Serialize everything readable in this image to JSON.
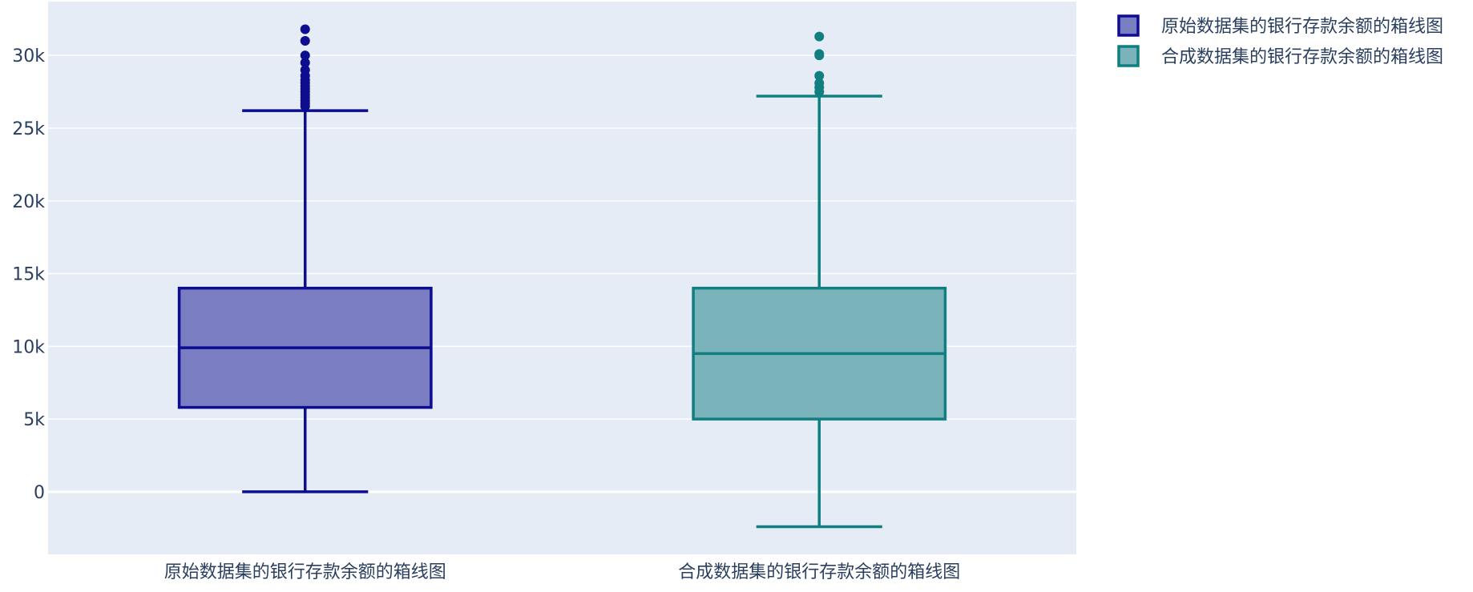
{
  "chart_data": {
    "type": "box",
    "title": "",
    "xlabel": "",
    "ylabel": "",
    "ylim": [
      -4300,
      33700
    ],
    "yticks": [
      {
        "value": 0,
        "label": "0"
      },
      {
        "value": 5000,
        "label": "5k"
      },
      {
        "value": 10000,
        "label": "10k"
      },
      {
        "value": 15000,
        "label": "15k"
      },
      {
        "value": 20000,
        "label": "20k"
      },
      {
        "value": 25000,
        "label": "25k"
      },
      {
        "value": 30000,
        "label": "30k"
      }
    ],
    "grid": true,
    "legend_placement": "top-right",
    "series": [
      {
        "name": "原始数据集的银行存款余额的箱线图",
        "category": "原始数据集的银行存款余额的箱线图",
        "color": "#0d0d8f",
        "fill": "#7a7dc2",
        "min": 0,
        "q1": 5800,
        "median": 9900,
        "q3": 14000,
        "max": 26200,
        "outliers": [
          26500,
          26700,
          26900,
          27100,
          27300,
          27500,
          27700,
          27900,
          28100,
          28300,
          28600,
          29000,
          29500,
          30000,
          31000,
          31800
        ]
      },
      {
        "name": "合成数据集的银行存款余额的箱线图",
        "category": "合成数据集的银行存款余额的箱线图",
        "color": "#117f80",
        "fill": "#7ab4ba",
        "min": -2400,
        "q1": 5000,
        "median": 9500,
        "q3": 14000,
        "max": 27200,
        "outliers": [
          27500,
          27800,
          28100,
          28600,
          30000,
          30100,
          31300
        ]
      }
    ]
  }
}
